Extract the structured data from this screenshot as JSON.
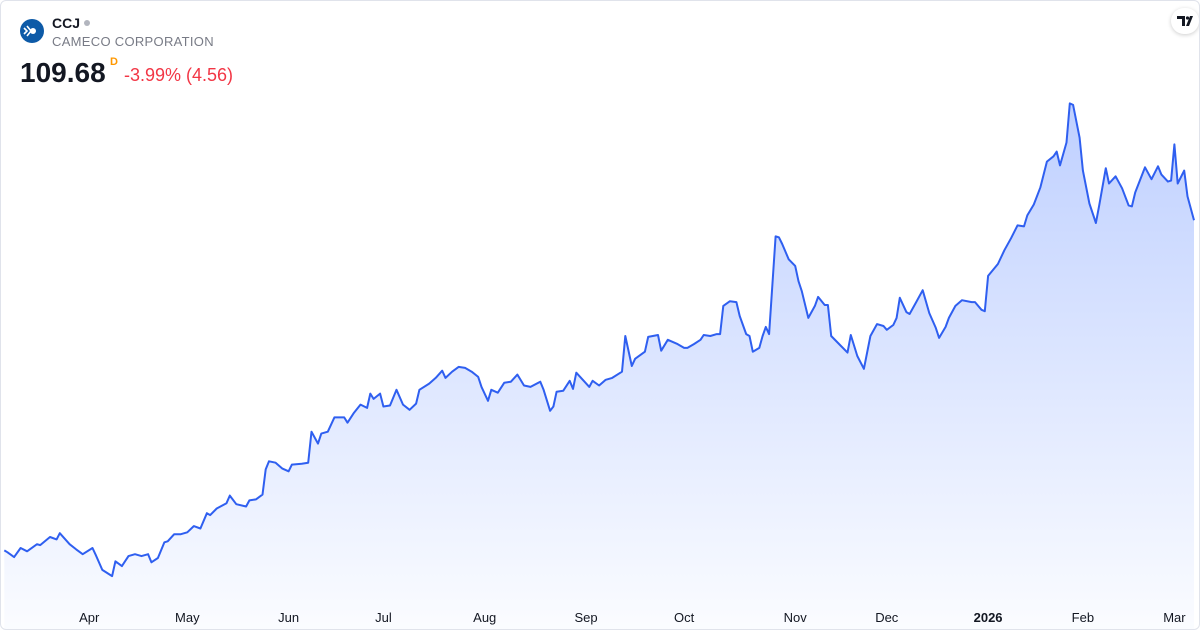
{
  "header": {
    "symbol": "CCJ",
    "name": "CAMECO CORPORATION",
    "price": 109.68,
    "interval": "D",
    "change": "-3.99% (4.56)"
  },
  "chart_data": {
    "type": "area",
    "x": [
      1,
      2,
      4,
      6,
      8,
      11,
      12,
      15,
      17,
      18,
      21,
      23,
      25,
      28,
      29,
      31,
      34,
      35,
      37,
      39,
      41,
      43,
      45,
      46,
      48,
      50,
      51,
      53,
      55,
      57,
      59,
      61,
      63,
      64,
      66,
      69,
      70,
      72,
      75,
      76,
      78,
      80,
      81,
      82,
      84,
      86,
      88,
      89,
      92,
      94,
      95,
      97,
      98,
      100,
      102,
      105,
      106,
      108,
      110,
      112,
      113,
      114,
      116,
      117,
      119,
      121,
      123,
      125,
      127,
      128,
      131,
      133,
      135,
      136,
      138,
      140,
      142,
      144,
      146,
      147,
      149,
      150,
      152,
      154,
      156,
      158,
      160,
      162,
      165,
      166,
      168,
      169,
      170,
      172,
      174,
      175,
      176,
      178,
      180,
      181,
      183,
      185,
      187,
      190,
      191,
      193,
      194,
      197,
      198,
      201,
      202,
      204,
      207,
      209,
      210,
      212,
      214,
      215,
      217,
      219,
      220,
      221,
      223,
      225,
      226,
      228,
      229,
      230,
      232,
      233,
      234,
      235,
      237,
      238,
      239,
      241,
      243,
      244,
      245,
      247,
      249,
      250,
      252,
      253,
      254,
      257,
      259,
      260,
      262,
      264,
      266,
      268,
      270,
      271,
      273,
      274,
      275,
      277,
      278,
      280,
      282,
      284,
      286,
      287,
      289,
      290,
      292,
      294,
      297,
      298,
      300,
      301,
      302,
      305,
      307,
      309,
      311,
      313,
      314,
      316,
      318,
      320,
      322,
      323,
      324,
      326,
      327,
      328,
      330,
      331,
      333,
      335,
      336,
      338,
      339,
      341,
      343,
      345,
      346,
      347,
      350,
      352,
      354,
      355,
      357,
      358,
      359,
      360,
      362,
      363,
      365
    ],
    "series": [
      {
        "color": "#2f5ff0",
        "values": [
          40.4,
          40.0,
          39.0,
          40.9,
          40.2,
          41.7,
          41.5,
          43.2,
          42.7,
          44.0,
          41.7,
          40.6,
          39.6,
          40.9,
          39.4,
          36.3,
          35.0,
          38.1,
          37.1,
          39.2,
          39.6,
          39.2,
          39.6,
          37.9,
          38.8,
          42.1,
          42.3,
          43.8,
          43.8,
          44.2,
          45.5,
          45.0,
          48.2,
          47.8,
          49.2,
          50.3,
          51.9,
          50.1,
          49.6,
          50.9,
          51.1,
          52.1,
          57.4,
          59.1,
          58.8,
          57.6,
          57.0,
          58.4,
          58.6,
          58.8,
          65.3,
          62.8,
          64.9,
          65.3,
          68.3,
          68.3,
          67.2,
          69.3,
          71.0,
          70.3,
          73.3,
          72.2,
          73.3,
          70.6,
          70.8,
          74.1,
          71.0,
          69.9,
          71.2,
          74.1,
          75.4,
          76.6,
          78.1,
          76.6,
          77.9,
          78.9,
          78.7,
          77.9,
          76.8,
          74.7,
          71.8,
          74.1,
          73.5,
          75.6,
          75.8,
          77.3,
          75.0,
          74.7,
          75.8,
          74.1,
          69.7,
          70.6,
          73.7,
          73.9,
          76.0,
          74.3,
          77.7,
          76.2,
          74.7,
          76.0,
          75.0,
          76.2,
          76.6,
          77.9,
          85.4,
          79.1,
          80.6,
          82.1,
          85.2,
          85.6,
          82.3,
          84.6,
          83.7,
          82.9,
          82.9,
          83.7,
          84.6,
          85.6,
          85.4,
          85.8,
          85.8,
          91.7,
          92.7,
          92.5,
          89.6,
          85.8,
          85.4,
          82.1,
          82.9,
          85.4,
          87.3,
          85.8,
          106.3,
          106.1,
          104.7,
          101.5,
          100.1,
          96.9,
          94.8,
          89.2,
          91.7,
          93.6,
          91.9,
          91.9,
          85.4,
          83.3,
          81.9,
          85.6,
          81.2,
          78.5,
          85.4,
          87.9,
          87.5,
          86.7,
          87.7,
          89.2,
          93.4,
          90.4,
          90.0,
          92.5,
          95.0,
          90.2,
          87.1,
          85.0,
          87.3,
          89.2,
          91.7,
          92.9,
          92.5,
          92.5,
          90.9,
          90.6,
          98.0,
          100.5,
          103.4,
          105.9,
          108.6,
          108.4,
          110.7,
          113.0,
          116.6,
          122.0,
          123.1,
          124.1,
          121.2,
          126.0,
          134.2,
          133.9,
          127.0,
          120.1,
          113.2,
          109.1,
          112.8,
          120.6,
          117.4,
          118.9,
          116.4,
          112.8,
          112.6,
          115.5,
          120.8,
          118.3,
          121.0,
          119.3,
          117.8,
          118.0,
          125.6,
          117.4,
          120.1,
          114.7,
          109.68
        ]
      }
    ],
    "xlim": [
      0,
      365
    ],
    "ylim": [
      23.9,
      155.7
    ],
    "xticks": [
      {
        "value": 27,
        "label": "Apr"
      },
      {
        "value": 57,
        "label": "May"
      },
      {
        "value": 88,
        "label": "Jun"
      },
      {
        "value": 117,
        "label": "Jul"
      },
      {
        "value": 148,
        "label": "Aug"
      },
      {
        "value": 179,
        "label": "Sep"
      },
      {
        "value": 209,
        "label": "Oct"
      },
      {
        "value": 243,
        "label": "Nov"
      },
      {
        "value": 271,
        "label": "Dec"
      },
      {
        "value": 302,
        "label": "2026"
      },
      {
        "value": 331,
        "label": "Feb"
      },
      {
        "value": 359,
        "label": "Mar"
      }
    ]
  }
}
